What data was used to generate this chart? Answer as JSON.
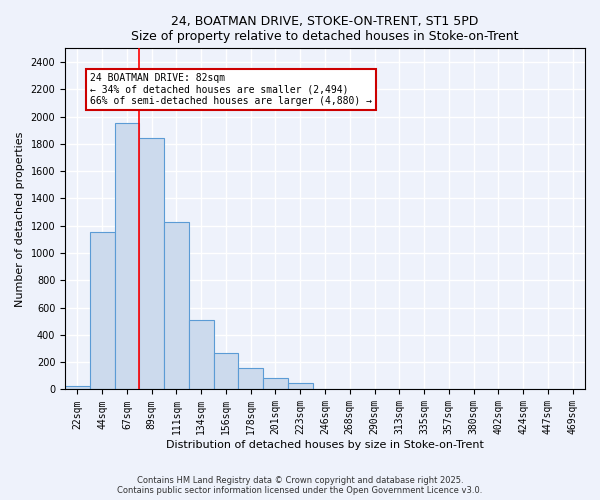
{
  "title1": "24, BOATMAN DRIVE, STOKE-ON-TRENT, ST1 5PD",
  "title2": "Size of property relative to detached houses in Stoke-on-Trent",
  "xlabel": "Distribution of detached houses by size in Stoke-on-Trent",
  "ylabel": "Number of detached properties",
  "categories": [
    "22sqm",
    "44sqm",
    "67sqm",
    "89sqm",
    "111sqm",
    "134sqm",
    "156sqm",
    "178sqm",
    "201sqm",
    "223sqm",
    "246sqm",
    "268sqm",
    "290sqm",
    "313sqm",
    "335sqm",
    "357sqm",
    "380sqm",
    "402sqm",
    "424sqm",
    "447sqm",
    "469sqm"
  ],
  "values": [
    25,
    1155,
    1950,
    1840,
    1230,
    510,
    270,
    155,
    85,
    45,
    0,
    0,
    0,
    0,
    0,
    0,
    0,
    0,
    0,
    0,
    0
  ],
  "bar_color": "#ccdaed",
  "bar_edge_color": "#5b9bd5",
  "red_line_x": 2.5,
  "annotation_text": "24 BOATMAN DRIVE: 82sqm\n← 34% of detached houses are smaller (2,494)\n66% of semi-detached houses are larger (4,880) →",
  "annotation_box_color": "#ffffff",
  "annotation_edge_color": "#cc0000",
  "ylim": [
    0,
    2500
  ],
  "yticks": [
    0,
    200,
    400,
    600,
    800,
    1000,
    1200,
    1400,
    1600,
    1800,
    2000,
    2200,
    2400
  ],
  "footnote1": "Contains HM Land Registry data © Crown copyright and database right 2025.",
  "footnote2": "Contains public sector information licensed under the Open Government Licence v3.0.",
  "bg_color": "#eef2fb",
  "grid_color": "#ffffff",
  "title_fontsize": 9,
  "ylabel_fontsize": 8,
  "xlabel_fontsize": 8,
  "tick_fontsize": 7,
  "annot_fontsize": 7,
  "footnote_fontsize": 6
}
